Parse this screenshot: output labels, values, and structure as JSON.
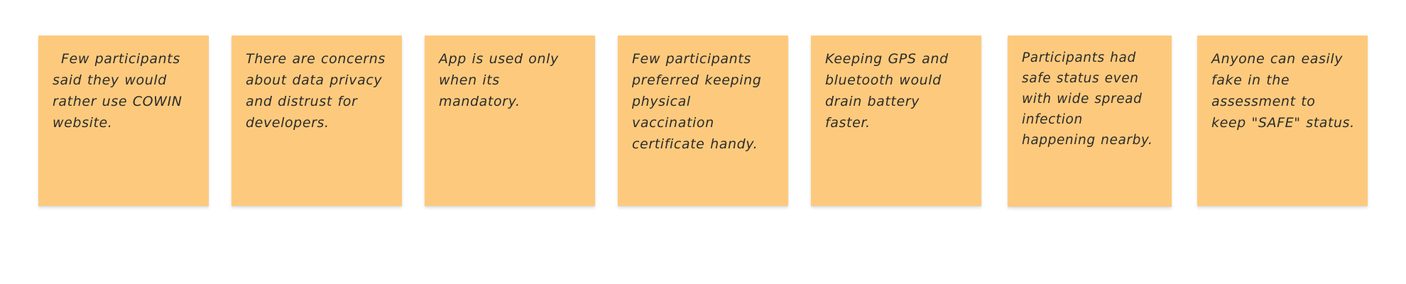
{
  "notes": [
    {
      "text": "Few participants said they would rather use COWIN website."
    },
    {
      "text": "There are concerns about data privacy and distrust for developers."
    },
    {
      "text": "App is used only when its mandatory."
    },
    {
      "text": "Few participants preferred keeping physical vaccination certificate handy."
    },
    {
      "text": "Keeping GPS and bluetooth would drain battery faster."
    },
    {
      "text": "Participants had safe status even with wide spread infection happening nearby."
    },
    {
      "text": "Anyone can easily fake in the assessment to keep \"SAFE\" status."
    }
  ],
  "colors": {
    "note_background": "#fdca7d",
    "note_text": "#2b2b2b",
    "canvas_background": "#ffffff"
  }
}
